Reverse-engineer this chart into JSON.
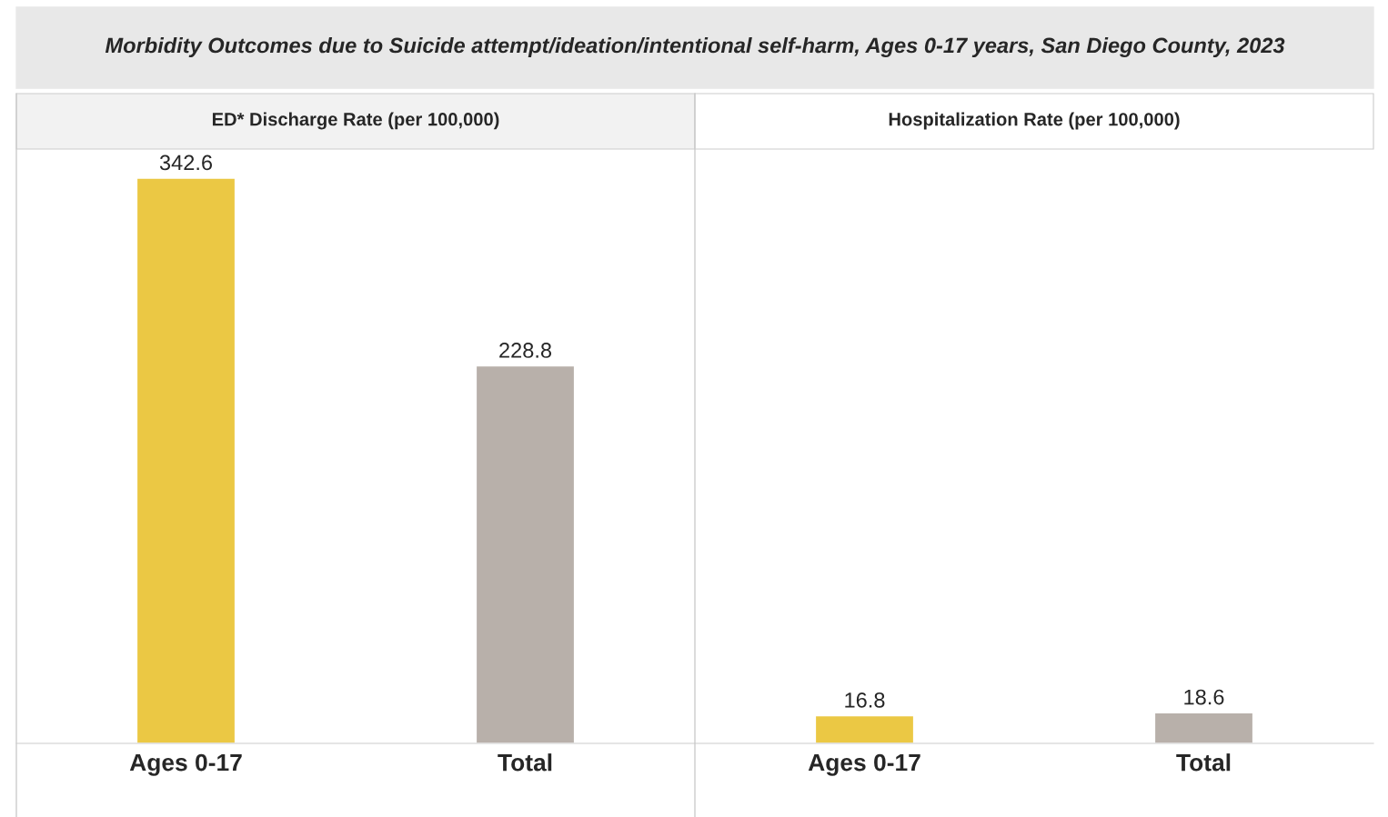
{
  "chart_data": [
    {
      "type": "bar",
      "title": "Morbidity Outcomes due to Suicide attempt/ideation/intentional self-harm, Ages 0-17 years, San Diego County, 2023",
      "subtitle": "ED* Discharge Rate (per 100,000)",
      "categories": [
        "Ages 0-17",
        "Total"
      ],
      "values": [
        342.6,
        228.8
      ],
      "colors": [
        "#ebc844",
        "#b8b0aa"
      ],
      "data_labels": true,
      "grid": false,
      "tick_labels": "x"
    },
    {
      "type": "bar",
      "subtitle": "Hospitalization Rate (per 100,000)",
      "categories": [
        "Ages 0-17",
        "Total"
      ],
      "values": [
        16.8,
        18.6
      ],
      "colors": [
        "#ebc844",
        "#b8b0aa"
      ],
      "data_labels": true,
      "grid": false,
      "tick_labels": "x"
    }
  ]
}
